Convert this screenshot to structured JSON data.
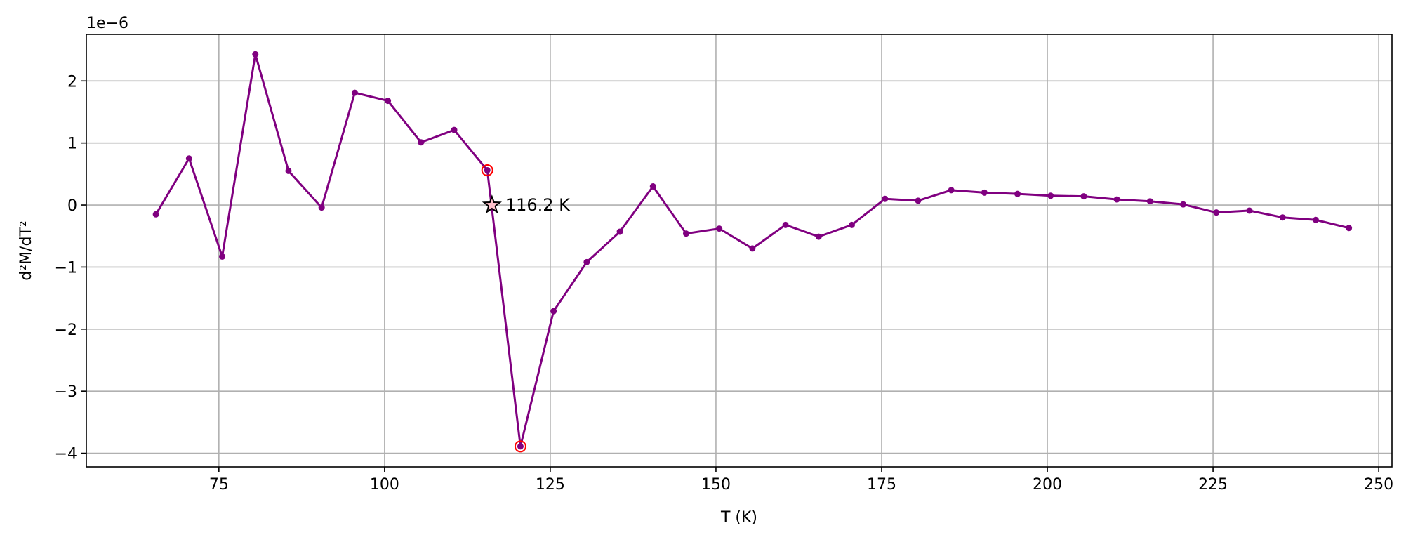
{
  "chart_data": {
    "type": "line",
    "xlabel": "T (K)",
    "ylabel": "d²M/dT²",
    "y_scale_label": "1e−6",
    "xlim": [
      55,
      252
    ],
    "ylim": [
      -4.22e-06,
      2.75e-06
    ],
    "x_ticks": [
      75,
      100,
      125,
      150,
      175,
      200,
      225,
      250
    ],
    "x_tick_labels": [
      "75",
      "100",
      "125",
      "150",
      "175",
      "200",
      "225",
      "250"
    ],
    "y_ticks": [
      -4e-06,
      -3e-06,
      -2e-06,
      -1e-06,
      0,
      1e-06,
      2e-06
    ],
    "y_tick_labels": [
      "−4",
      "−3",
      "−2",
      "−1",
      "0",
      "1",
      "2"
    ],
    "grid": true,
    "colors": {
      "series": "#800080",
      "highlight": "#ff0000",
      "marker_fill": "#ffc0cb",
      "grid": "#b0b0b0"
    },
    "series": [
      {
        "x": [
          65.5,
          70.5,
          75.5,
          80.5,
          85.5,
          90.5,
          95.5,
          100.5,
          105.5,
          110.5,
          115.5,
          120.5,
          125.5,
          130.5,
          135.5,
          140.5,
          145.5,
          150.5,
          155.5,
          160.5,
          165.5,
          170.5,
          175.5,
          180.5,
          185.5,
          190.5,
          195.5,
          200.5,
          205.5,
          210.5,
          215.5,
          220.5,
          225.5,
          230.5,
          235.5,
          240.5,
          245.5
        ],
        "y": [
          -1.5e-07,
          7.5e-07,
          -8.3e-07,
          2.43e-06,
          5.5e-07,
          -4e-08,
          1.81e-06,
          1.68e-06,
          1.01e-06,
          1.21e-06,
          5.6e-07,
          -3.89e-06,
          -1.71e-06,
          -9.2e-07,
          -4.3e-07,
          3e-07,
          -4.6e-07,
          -3.8e-07,
          -7e-07,
          -3.2e-07,
          -5.1e-07,
          -3.2e-07,
          1e-07,
          7e-08,
          2.4e-07,
          2e-07,
          1.8e-07,
          1.5e-07,
          1.4e-07,
          9e-08,
          6e-08,
          1e-08,
          -1.2e-07,
          -9e-08,
          -2e-07,
          -2.4e-07,
          -3.7e-07
        ]
      }
    ],
    "highlighted_points": [
      {
        "x": 115.5,
        "y": 5.6e-07
      },
      {
        "x": 120.5,
        "y": -3.89e-06
      }
    ],
    "zero_crossing": {
      "x": 116.2,
      "y": 0,
      "label": "116.2 K"
    }
  }
}
